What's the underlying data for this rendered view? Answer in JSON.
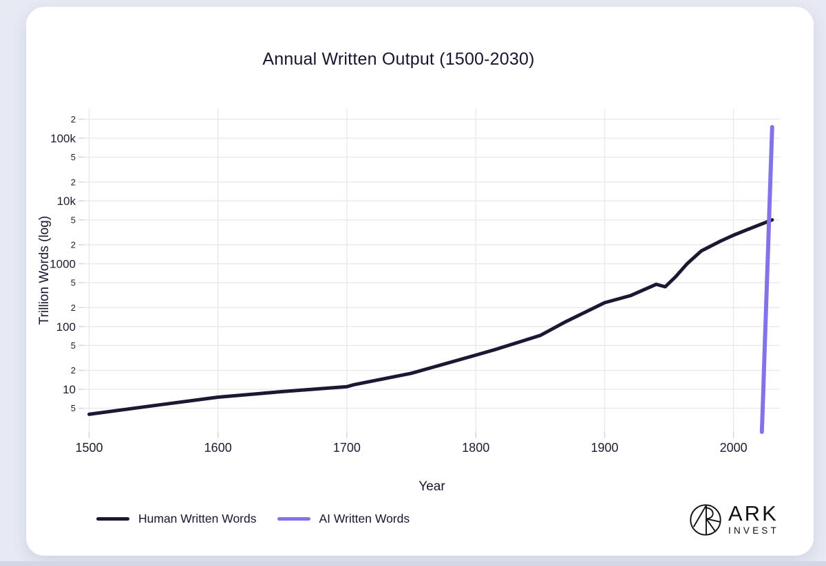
{
  "page": {
    "title": "Annual Written Output (1500-2030)"
  },
  "brand": {
    "name": "ARK",
    "sub": "INVEST"
  },
  "colors": {
    "background": "#e7eaf3",
    "card": "#ffffff",
    "grid": "#e8e9ef",
    "text": "#1c1c30",
    "human_line": "#1a1833",
    "ai_line": "#8273e8"
  },
  "chart_data": {
    "type": "line",
    "title": "Annual Written Output (1500-2030)",
    "xlabel": "Year",
    "ylabel": "Trillion Words (log)",
    "legend_position": "bottom-left",
    "axes": {
      "y_scale": "log",
      "grid": true,
      "x_range": [
        1496,
        2036
      ],
      "y_range": [
        2.1,
        295000
      ],
      "x_ticks": [
        1500,
        1600,
        1700,
        1800,
        1900,
        2000
      ],
      "y_ticks": [
        {
          "v": 5,
          "label": "5",
          "major": false
        },
        {
          "v": 10,
          "label": "10",
          "major": true
        },
        {
          "v": 20,
          "label": "2",
          "major": false
        },
        {
          "v": 50,
          "label": "5",
          "major": false
        },
        {
          "v": 100,
          "label": "100",
          "major": true
        },
        {
          "v": 200,
          "label": "2",
          "major": false
        },
        {
          "v": 500,
          "label": "5",
          "major": false
        },
        {
          "v": 1000,
          "label": "1000",
          "major": true
        },
        {
          "v": 2000,
          "label": "2",
          "major": false
        },
        {
          "v": 5000,
          "label": "5",
          "major": false
        },
        {
          "v": 10000,
          "label": "10k",
          "major": true
        },
        {
          "v": 20000,
          "label": "2",
          "major": false
        },
        {
          "v": 50000,
          "label": "5",
          "major": false
        },
        {
          "v": 100000,
          "label": "100k",
          "major": true
        },
        {
          "v": 200000,
          "label": "2",
          "major": false
        }
      ]
    },
    "series": [
      {
        "name": "Human Written Words",
        "color": "#1a1833",
        "width": 5,
        "points": [
          [
            1500,
            4
          ],
          [
            1550,
            5.5
          ],
          [
            1600,
            7.5
          ],
          [
            1650,
            9.2
          ],
          [
            1700,
            11
          ],
          [
            1705,
            11.8
          ],
          [
            1750,
            18
          ],
          [
            1800,
            35
          ],
          [
            1815,
            43
          ],
          [
            1850,
            72
          ],
          [
            1870,
            120
          ],
          [
            1900,
            240
          ],
          [
            1920,
            310
          ],
          [
            1940,
            470
          ],
          [
            1947,
            430
          ],
          [
            1955,
            620
          ],
          [
            1964,
            1000
          ],
          [
            1975,
            1600
          ],
          [
            1990,
            2300
          ],
          [
            2000,
            2850
          ],
          [
            2010,
            3450
          ],
          [
            2020,
            4150
          ],
          [
            2030,
            5000
          ]
        ]
      },
      {
        "name": "AI Written Words",
        "color": "#8273e8",
        "width": 6,
        "points": [
          [
            2022,
            2.1
          ],
          [
            2023,
            8
          ],
          [
            2024,
            33
          ],
          [
            2025,
            134
          ],
          [
            2026,
            550
          ],
          [
            2027,
            2200
          ],
          [
            2028,
            9000
          ],
          [
            2029,
            36500
          ],
          [
            2030,
            150000
          ]
        ]
      }
    ]
  }
}
